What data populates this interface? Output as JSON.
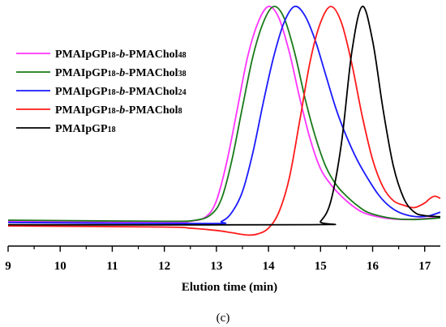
{
  "chart_data": {
    "type": "line",
    "title": "",
    "xlabel": "Elution time (min)",
    "ylabel": "",
    "caption": "(c)",
    "xlim": [
      9,
      17.3
    ],
    "ylim": [
      -0.02,
      1.0
    ],
    "x_ticks": [
      "9",
      "10",
      "11",
      "12",
      "13",
      "14",
      "15",
      "16",
      "17"
    ],
    "grid": false,
    "legend_position": "top-left",
    "series": [
      {
        "name": "PMAIpGP18-b-PMAChol48",
        "legend": {
          "pre": "PMAIpGP",
          "sub1": "18",
          "mid": "-",
          "ital": "b",
          "post": "-PMAChol",
          "sub2": "48"
        },
        "color": "#ff33ff",
        "points": [
          [
            9.0,
            0.06
          ],
          [
            12.0,
            0.055
          ],
          [
            12.5,
            0.06
          ],
          [
            12.8,
            0.08
          ],
          [
            13.0,
            0.15
          ],
          [
            13.2,
            0.32
          ],
          [
            13.4,
            0.55
          ],
          [
            13.6,
            0.78
          ],
          [
            13.8,
            0.93
          ],
          [
            14.0,
            1.0
          ],
          [
            14.2,
            0.95
          ],
          [
            14.4,
            0.8
          ],
          [
            14.6,
            0.6
          ],
          [
            14.8,
            0.42
          ],
          [
            15.0,
            0.29
          ],
          [
            15.2,
            0.22
          ],
          [
            15.4,
            0.17
          ],
          [
            15.6,
            0.13
          ],
          [
            15.8,
            0.1
          ],
          [
            16.0,
            0.085
          ],
          [
            16.3,
            0.072
          ],
          [
            16.6,
            0.068
          ],
          [
            17.0,
            0.072
          ],
          [
            17.3,
            0.08
          ]
        ]
      },
      {
        "name": "PMAIpGP18-b-PMAChol38",
        "legend": {
          "pre": "PMAIpGP",
          "sub1": "18",
          "mid": "-",
          "ital": "b",
          "post": "-PMAChol",
          "sub2": "38"
        },
        "color": "#1a7a1a",
        "points": [
          [
            9.0,
            0.065
          ],
          [
            12.0,
            0.06
          ],
          [
            12.6,
            0.065
          ],
          [
            12.9,
            0.09
          ],
          [
            13.1,
            0.16
          ],
          [
            13.3,
            0.33
          ],
          [
            13.5,
            0.56
          ],
          [
            13.7,
            0.78
          ],
          [
            13.9,
            0.93
          ],
          [
            14.1,
            1.0
          ],
          [
            14.3,
            0.95
          ],
          [
            14.5,
            0.8
          ],
          [
            14.7,
            0.6
          ],
          [
            14.9,
            0.43
          ],
          [
            15.1,
            0.3
          ],
          [
            15.3,
            0.22
          ],
          [
            15.5,
            0.17
          ],
          [
            15.7,
            0.13
          ],
          [
            15.9,
            0.1
          ],
          [
            16.2,
            0.08
          ],
          [
            16.5,
            0.07
          ],
          [
            16.8,
            0.068
          ],
          [
            17.0,
            0.07
          ],
          [
            17.3,
            0.075
          ]
        ]
      },
      {
        "name": "PMAIpGP18-b-PMAChol24",
        "legend": {
          "pre": "PMAIpGP",
          "sub1": "18",
          "mid": "-",
          "ital": "b",
          "post": "-PMAChol",
          "sub2": "24"
        },
        "color": "#1a1aff",
        "points": [
          [
            9.0,
            0.055
          ],
          [
            12.8,
            0.05
          ],
          [
            13.1,
            0.06
          ],
          [
            13.3,
            0.1
          ],
          [
            13.5,
            0.19
          ],
          [
            13.7,
            0.36
          ],
          [
            13.9,
            0.58
          ],
          [
            14.1,
            0.78
          ],
          [
            14.3,
            0.93
          ],
          [
            14.5,
            1.0
          ],
          [
            14.7,
            0.96
          ],
          [
            14.9,
            0.85
          ],
          [
            15.1,
            0.7
          ],
          [
            15.3,
            0.55
          ],
          [
            15.5,
            0.43
          ],
          [
            15.7,
            0.33
          ],
          [
            15.9,
            0.25
          ],
          [
            16.1,
            0.18
          ],
          [
            16.3,
            0.13
          ],
          [
            16.5,
            0.1
          ],
          [
            16.7,
            0.085
          ],
          [
            16.9,
            0.08
          ],
          [
            17.1,
            0.085
          ],
          [
            17.3,
            0.1
          ]
        ]
      },
      {
        "name": "PMAIpGP18-b-PMAChol8",
        "legend": {
          "pre": "PMAIpGP",
          "sub1": "18",
          "mid": "-",
          "ital": "b",
          "post": "-PMAChol",
          "sub2": "8"
        },
        "color": "#ff1a1a",
        "points": [
          [
            9.0,
            0.04
          ],
          [
            12.0,
            0.035
          ],
          [
            12.5,
            0.03
          ],
          [
            13.0,
            0.02
          ],
          [
            13.3,
            0.01
          ],
          [
            13.6,
            0.0
          ],
          [
            13.8,
            0.005
          ],
          [
            14.0,
            0.03
          ],
          [
            14.2,
            0.1
          ],
          [
            14.4,
            0.25
          ],
          [
            14.6,
            0.5
          ],
          [
            14.8,
            0.76
          ],
          [
            15.0,
            0.93
          ],
          [
            15.2,
            1.0
          ],
          [
            15.4,
            0.93
          ],
          [
            15.6,
            0.75
          ],
          [
            15.8,
            0.52
          ],
          [
            16.0,
            0.33
          ],
          [
            16.2,
            0.21
          ],
          [
            16.4,
            0.15
          ],
          [
            16.6,
            0.13
          ],
          [
            16.8,
            0.12
          ],
          [
            17.0,
            0.14
          ],
          [
            17.1,
            0.16
          ],
          [
            17.2,
            0.17
          ],
          [
            17.3,
            0.16
          ]
        ]
      },
      {
        "name": "PMAIpGP18",
        "legend": {
          "pre": "PMAIpGP",
          "sub1": "18",
          "mid": "",
          "ital": "",
          "post": "",
          "sub2": ""
        },
        "color": "#000000",
        "points": [
          [
            9.0,
            0.045
          ],
          [
            14.8,
            0.045
          ],
          [
            15.0,
            0.06
          ],
          [
            15.2,
            0.15
          ],
          [
            15.4,
            0.4
          ],
          [
            15.6,
            0.8
          ],
          [
            15.8,
            1.0
          ],
          [
            16.0,
            0.85
          ],
          [
            16.2,
            0.55
          ],
          [
            16.4,
            0.3
          ],
          [
            16.6,
            0.16
          ],
          [
            16.8,
            0.1
          ],
          [
            17.0,
            0.085
          ],
          [
            17.3,
            0.08
          ]
        ]
      }
    ]
  }
}
